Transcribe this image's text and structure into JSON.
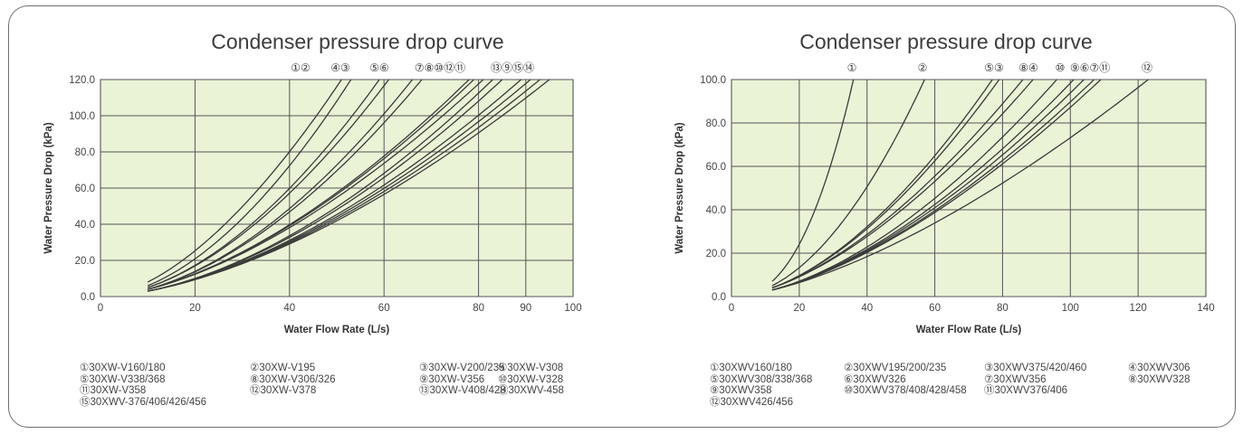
{
  "chart_data": [
    {
      "type": "line",
      "title": "Condenser pressure drop curve",
      "xlabel": "Water Flow Rate (L/s)",
      "ylabel": "Water Pressure Drop (kPa)",
      "xlim": [
        0,
        100
      ],
      "ylim": [
        0,
        120
      ],
      "x_ticks": [
        "0",
        "20",
        "40",
        "60",
        "80",
        "90",
        "100"
      ],
      "x_grid": [
        20,
        40,
        60,
        80,
        90
      ],
      "y_ticks": [
        "0.0",
        "20.0",
        "40.0",
        "60.0",
        "80.0",
        "100.0",
        "120.0"
      ],
      "grid": true,
      "plot_bg": "#eaf3d6",
      "top_markers": [
        "①②",
        "④③",
        "⑤⑥",
        "⑦⑧⑩⑫⑪",
        "⑬⑨⑮⑭"
      ],
      "series": [
        {
          "name": "①",
          "x": [
            10,
            51
          ],
          "y": [
            8,
            120
          ]
        },
        {
          "name": "②",
          "x": [
            10,
            53
          ],
          "y": [
            6,
            120
          ]
        },
        {
          "name": "③",
          "x": [
            10,
            61
          ],
          "y": [
            5,
            120
          ]
        },
        {
          "name": "④",
          "x": [
            10,
            59
          ],
          "y": [
            5,
            120
          ]
        },
        {
          "name": "⑤",
          "x": [
            10,
            66
          ],
          "y": [
            4,
            120
          ]
        },
        {
          "name": "⑥",
          "x": [
            10,
            68
          ],
          "y": [
            4,
            120
          ]
        },
        {
          "name": "⑦",
          "x": [
            10,
            78
          ],
          "y": [
            4,
            120
          ]
        },
        {
          "name": "⑧",
          "x": [
            10,
            79
          ],
          "y": [
            4,
            120
          ]
        },
        {
          "name": "⑨",
          "x": [
            10,
            91
          ],
          "y": [
            3,
            120
          ]
        },
        {
          "name": "⑩",
          "x": [
            10,
            81
          ],
          "y": [
            4,
            120
          ]
        },
        {
          "name": "⑪",
          "x": [
            10,
            85
          ],
          "y": [
            3,
            120
          ]
        },
        {
          "name": "⑫",
          "x": [
            10,
            83
          ],
          "y": [
            3,
            120
          ]
        },
        {
          "name": "⑬",
          "x": [
            10,
            89
          ],
          "y": [
            3,
            120
          ]
        },
        {
          "name": "⑭",
          "x": [
            10,
            95
          ],
          "y": [
            3,
            120
          ]
        },
        {
          "name": "⑮",
          "x": [
            10,
            93
          ],
          "y": [
            3,
            120
          ]
        }
      ],
      "legend": [
        [
          "①30XW-V160/180",
          "②30XW-V195",
          "③30XW-V200/235",
          "④30XW-V308"
        ],
        [
          "⑤30XW-V338/368",
          "⑧30XW-V306/326",
          "⑨30XW-V356",
          "⑩30XW-V328"
        ],
        [
          "⑪30XW-V358",
          "⑫30XW-V378",
          "⑬30XW-V408/428",
          "⑭30XWV-458"
        ],
        [
          "⑮30XWV-376/406/426/456"
        ]
      ]
    },
    {
      "type": "line",
      "title": "Condenser pressure drop curve",
      "xlabel": "Water Flow Rate (L/s)",
      "ylabel": "Water Pressure Drop (kPa)",
      "xlim": [
        0,
        140
      ],
      "ylim": [
        0,
        100
      ],
      "x_ticks": [
        "0",
        "20",
        "40",
        "60",
        "80",
        "100",
        "120",
        "140"
      ],
      "x_grid": [
        20,
        40,
        60,
        80,
        100,
        120
      ],
      "y_ticks": [
        "0.0",
        "20.0",
        "40.0",
        "60.0",
        "80.0",
        "100.0"
      ],
      "grid": true,
      "plot_bg": "#eaf3d6",
      "top_markers": [
        "①",
        "②",
        "⑤③",
        "⑧④",
        "⑩",
        "⑨⑥⑦⑪",
        "⑫"
      ],
      "series": [
        {
          "name": "①",
          "x": [
            12,
            36
          ],
          "y": [
            7,
            100
          ]
        },
        {
          "name": "②",
          "x": [
            12,
            57
          ],
          "y": [
            5,
            100
          ]
        },
        {
          "name": "③",
          "x": [
            12,
            79
          ],
          "y": [
            4,
            100
          ]
        },
        {
          "name": "④",
          "x": [
            12,
            89
          ],
          "y": [
            4,
            100
          ]
        },
        {
          "name": "⑤",
          "x": [
            12,
            77
          ],
          "y": [
            4,
            100
          ]
        },
        {
          "name": "⑥",
          "x": [
            12,
            104
          ],
          "y": [
            3,
            100
          ]
        },
        {
          "name": "⑦",
          "x": [
            12,
            107
          ],
          "y": [
            3,
            100
          ]
        },
        {
          "name": "⑧",
          "x": [
            12,
            86
          ],
          "y": [
            4,
            100
          ]
        },
        {
          "name": "⑨",
          "x": [
            12,
            101
          ],
          "y": [
            3,
            100
          ]
        },
        {
          "name": "⑩",
          "x": [
            12,
            96
          ],
          "y": [
            3,
            100
          ]
        },
        {
          "name": "⑪",
          "x": [
            12,
            109
          ],
          "y": [
            3,
            100
          ]
        },
        {
          "name": "⑫",
          "x": [
            12,
            123
          ],
          "y": [
            3,
            100
          ]
        }
      ],
      "legend": [
        [
          "①30XWV160/180",
          "②30XWV195/200/235",
          "③30XWV375/420/460",
          "④30XWV306"
        ],
        [
          "⑤30XWV308/338/368",
          "⑥30XWV326",
          "⑦30XWV356",
          "⑧30XWV328"
        ],
        [
          "⑨30XWV358",
          "⑩30XWV378/408/428/458",
          "⑪30XWV376/406",
          ""
        ],
        [
          "⑫30XWV426/456"
        ]
      ]
    }
  ]
}
